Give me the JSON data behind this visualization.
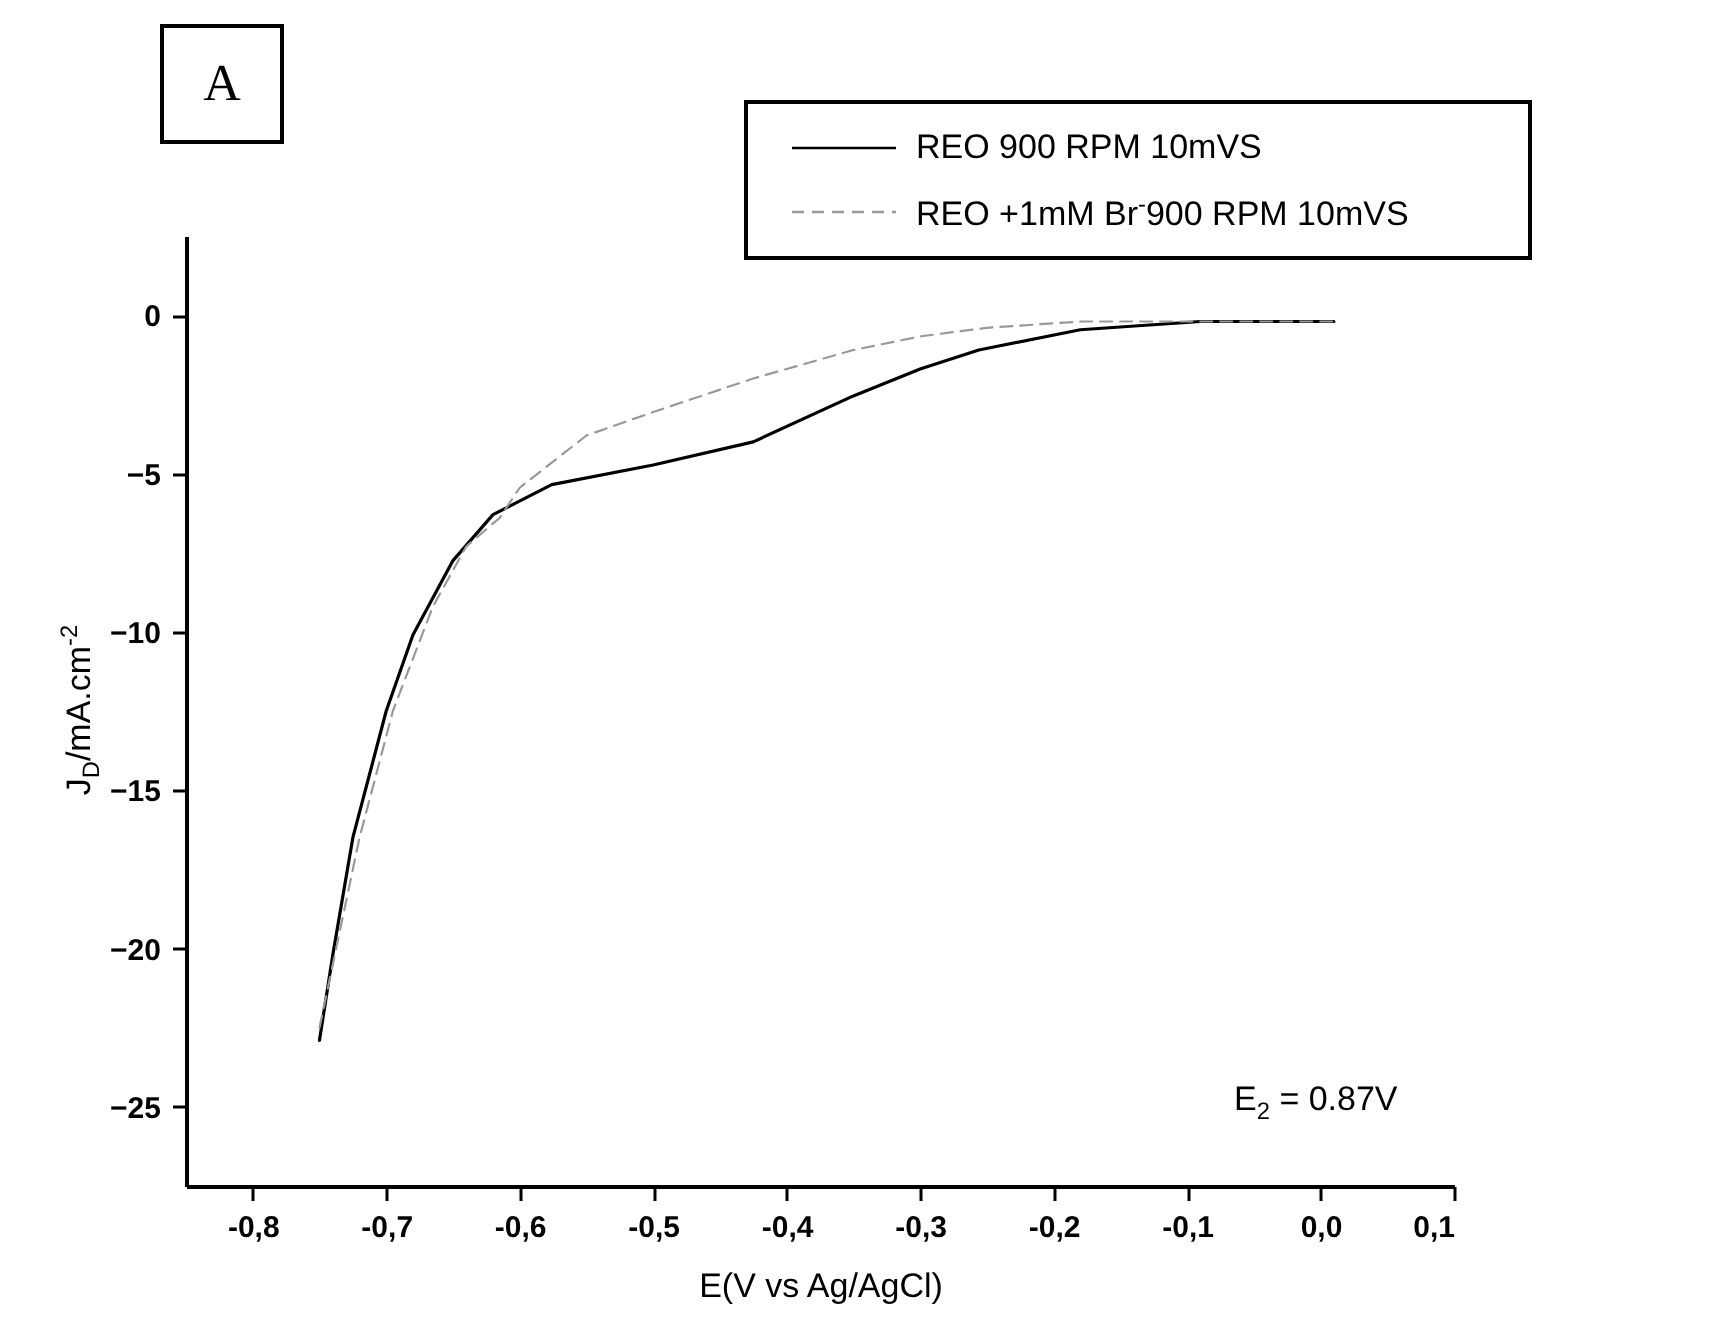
{
  "chart_data": {
    "type": "line",
    "xlabel": "E(V vs Ag/AgCl)",
    "ylabel": "J$_{D}$/mA.cm$^{-2}$",
    "annotations": [
      "A",
      "E$_{2}$ = 0.87V"
    ],
    "xlim": [
      -0.85,
      0.1
    ],
    "ylim": [
      -27.5,
      2.5
    ],
    "xticks": [
      {
        "value": -0.8,
        "label": "-0,8"
      },
      {
        "value": -0.7,
        "label": "-0,7"
      },
      {
        "value": -0.6,
        "label": "-0,6"
      },
      {
        "value": -0.5,
        "label": "-0,5"
      },
      {
        "value": -0.4,
        "label": "-0,4"
      },
      {
        "value": -0.3,
        "label": "-0,3"
      },
      {
        "value": -0.2,
        "label": "-0,2"
      },
      {
        "value": -0.1,
        "label": "-0,1"
      },
      {
        "value": 0,
        "label": "0,0"
      },
      {
        "value": 0.1,
        "label": "0,1"
      }
    ],
    "yticks": [
      0,
      -5,
      -10,
      -15,
      -20,
      -25
    ],
    "grid": false,
    "legend": "top right",
    "marker": "none",
    "series": [
      {
        "name": "REO 900 RPM 10mVS",
        "color": "#000000",
        "line_style": "solid",
        "x": [
          -0.75,
          -0.74,
          -0.725,
          -0.7,
          -0.68,
          -0.65,
          -0.62,
          -0.576,
          -0.5,
          -0.425,
          -0.35,
          -0.3,
          -0.256,
          -0.18,
          -0.09,
          0.01
        ],
        "values": [
          -22.9,
          -20.2,
          -16.5,
          -12.5,
          -10.1,
          -7.75,
          -6.3,
          -5.35,
          -4.73,
          -4.0,
          -2.55,
          -1.7,
          -1.1,
          -0.46,
          -0.2,
          -0.2
        ]
      },
      {
        "name": "REO +1mM Br$^{-}$900 RPM 10mVS",
        "color": "#999999",
        "line_style": "dashed",
        "x": [
          -0.75,
          -0.735,
          -0.72,
          -0.695,
          -0.665,
          -0.64,
          -0.615,
          -0.6,
          -0.55,
          -0.5,
          -0.425,
          -0.35,
          -0.3,
          -0.25,
          -0.18,
          0.01
        ],
        "values": [
          -22.5,
          -19.5,
          -16.5,
          -12.5,
          -9.2,
          -7.3,
          -6.4,
          -5.45,
          -3.8,
          -3.06,
          -2.0,
          -1.1,
          -0.67,
          -0.4,
          -0.2,
          -0.2
        ]
      }
    ]
  }
}
